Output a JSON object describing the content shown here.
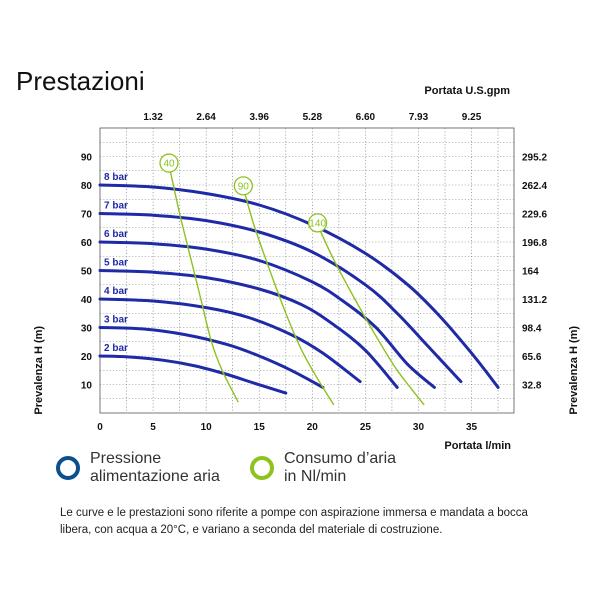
{
  "title": "Prestazioni",
  "chart_data": {
    "type": "line",
    "x_label": "Portata  l/min",
    "x_ticks": [
      0,
      5,
      10,
      15,
      20,
      25,
      30,
      35
    ],
    "x_top_label": "Portata U.S.gpm",
    "x_top_ticks": [
      "1.32",
      "2.64",
      "3.96",
      "5.28",
      "6.60",
      "7.93",
      "9.25"
    ],
    "y_label": "Prevalenza  H (m)",
    "y_ticks": [
      10,
      20,
      30,
      40,
      50,
      60,
      70,
      80,
      90
    ],
    "y_right_label": "Prevalenza  H (m)",
    "y_right_ticks": [
      "32.8",
      "65.6",
      "98.4",
      "131.2",
      "164",
      "196.8",
      "229.6",
      "262.4",
      "295.2"
    ],
    "xlim": [
      0,
      39
    ],
    "ylim": [
      0,
      100
    ],
    "grid": true,
    "series": [
      {
        "name": "2 bar",
        "color": "#1f2aa6",
        "points": [
          [
            0,
            20
          ],
          [
            3,
            19.6
          ],
          [
            6,
            18.5
          ],
          [
            9,
            16.5
          ],
          [
            12,
            13.5
          ],
          [
            14.5,
            10.5
          ],
          [
            17.5,
            7
          ]
        ]
      },
      {
        "name": "3 bar",
        "color": "#1f2aa6",
        "points": [
          [
            0,
            30
          ],
          [
            4,
            29.5
          ],
          [
            8,
            27.5
          ],
          [
            12,
            24
          ],
          [
            15,
            20
          ],
          [
            18,
            15
          ],
          [
            21,
            9
          ]
        ]
      },
      {
        "name": "4 bar",
        "color": "#1f2aa6",
        "points": [
          [
            0,
            40
          ],
          [
            5,
            39.3
          ],
          [
            10,
            37
          ],
          [
            14,
            33.5
          ],
          [
            18,
            27.5
          ],
          [
            21,
            21
          ],
          [
            24.5,
            11
          ]
        ]
      },
      {
        "name": "5 bar",
        "color": "#1f2aa6",
        "points": [
          [
            0,
            50
          ],
          [
            5,
            49.4
          ],
          [
            10,
            47.5
          ],
          [
            15,
            43.5
          ],
          [
            19,
            38
          ],
          [
            22,
            31
          ],
          [
            25,
            22
          ],
          [
            28,
            9
          ]
        ]
      },
      {
        "name": "6 bar",
        "color": "#1f2aa6",
        "points": [
          [
            0,
            60
          ],
          [
            5,
            59.4
          ],
          [
            10,
            57.5
          ],
          [
            15,
            53.5
          ],
          [
            20,
            46
          ],
          [
            23,
            39
          ],
          [
            26,
            30
          ],
          [
            29,
            17
          ],
          [
            31.5,
            9
          ]
        ]
      },
      {
        "name": "7 bar",
        "color": "#1f2aa6",
        "points": [
          [
            0,
            70
          ],
          [
            5,
            69.4
          ],
          [
            10,
            67.5
          ],
          [
            15,
            63.5
          ],
          [
            20,
            56.5
          ],
          [
            25,
            45
          ],
          [
            28,
            35
          ],
          [
            31,
            23
          ],
          [
            34,
            11
          ]
        ]
      },
      {
        "name": "8 bar",
        "color": "#1f2aa6",
        "points": [
          [
            0,
            80
          ],
          [
            5,
            79.3
          ],
          [
            10,
            77
          ],
          [
            15,
            73
          ],
          [
            20,
            66
          ],
          [
            25,
            56
          ],
          [
            29,
            45
          ],
          [
            32,
            34
          ],
          [
            35,
            21
          ],
          [
            37.5,
            9
          ]
        ]
      },
      {
        "name": "40",
        "color": "#8dc21f",
        "points": [
          [
            6.5,
            87
          ],
          [
            7.5,
            70
          ],
          [
            8.5,
            55
          ],
          [
            9.5,
            40
          ],
          [
            10.5,
            25
          ],
          [
            11.5,
            15
          ],
          [
            13,
            4
          ]
        ]
      },
      {
        "name": "90",
        "color": "#8dc21f",
        "points": [
          [
            13.5,
            79
          ],
          [
            14.5,
            66
          ],
          [
            16,
            50
          ],
          [
            17.5,
            35
          ],
          [
            19,
            22
          ],
          [
            20.5,
            12
          ],
          [
            22,
            3
          ]
        ]
      },
      {
        "name": "140",
        "color": "#8dc21f",
        "points": [
          [
            20.5,
            66
          ],
          [
            22,
            54
          ],
          [
            24,
            40
          ],
          [
            26,
            27
          ],
          [
            28,
            15
          ],
          [
            30.5,
            3
          ]
        ]
      }
    ]
  },
  "legend": {
    "pressure_line1": "Pressione",
    "pressure_line2": "alimentazione aria",
    "pressure_color": "#0b4f8f",
    "air_line1": "Consumo d’aria",
    "air_line2": "in Nl/min",
    "air_color": "#8dc21f"
  },
  "note": "Le curve e le prestazioni sono riferite a pompe con aspirazione immersa e mandata a bocca libera, con acqua a 20°C, e variano a seconda del materiale di costruzione."
}
